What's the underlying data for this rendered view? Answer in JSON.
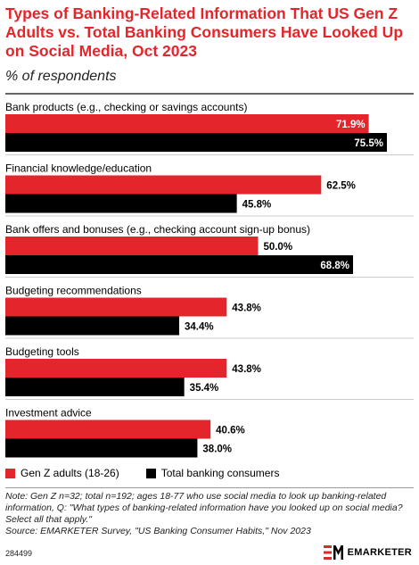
{
  "title": "Types of Banking-Related Information That US Gen Z Adults vs. Total Banking Consumers Have Looked Up on Social Media, Oct 2023",
  "subtitle": "% of respondents",
  "colors": {
    "gen_z": "#e4262c",
    "total": "#000000",
    "title": "#e4262c"
  },
  "chart_data": {
    "type": "bar",
    "orientation": "horizontal",
    "categories": [
      "Bank products (e.g., checking or savings accounts)",
      "Financial knowledge/education",
      "Bank offers and bonuses (e.g., checking account sign-up bonus)",
      "Budgeting recommendations",
      "Budgeting tools",
      "Investment advice"
    ],
    "series": [
      {
        "name": "Gen Z adults (18-26)",
        "values": [
          71.9,
          62.5,
          50.0,
          43.8,
          43.8,
          40.6
        ],
        "labels": [
          "71.9%",
          "62.5%",
          "50.0%",
          "43.8%",
          "43.8%",
          "40.6%"
        ]
      },
      {
        "name": "Total banking consumers",
        "values": [
          75.5,
          45.8,
          68.8,
          34.4,
          35.4,
          38.0
        ],
        "labels": [
          "75.5%",
          "45.8%",
          "68.8%",
          "34.4%",
          "35.4%",
          "38.0%"
        ]
      }
    ],
    "xlim": [
      0,
      75.5
    ],
    "legend_position": "bottom-left"
  },
  "legend": [
    {
      "label": "Gen Z adults (18-26)",
      "color": "#e4262c"
    },
    {
      "label": "Total banking consumers",
      "color": "#000000"
    }
  ],
  "note": "Note: Gen Z n=32; total n=192; ages 18-77 who use social media to look up banking-related information, Q: \"What types of banking-related information have you looked up on social media? Select all that apply.\"",
  "source": "Source: EMARKETER Survey, \"US Banking Consumer Habits,\" Nov 2023",
  "chart_id": "284499",
  "logo_text": "EMARKETER"
}
